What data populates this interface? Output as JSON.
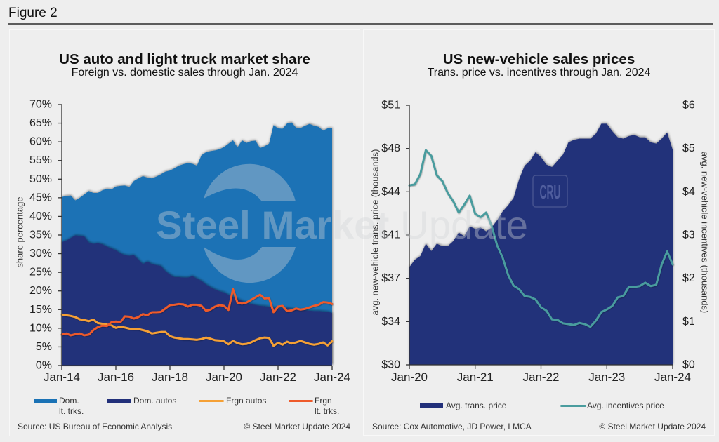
{
  "figure": {
    "label": "Figure 2"
  },
  "watermark": {
    "brand_bold": "Steel Market",
    "brand_light": "Update",
    "partner_logo": "CRU"
  },
  "chart_data": [
    {
      "type": "area",
      "title": "US auto and light truck market share",
      "subtitle": "Foreign vs. domestic sales through Jan. 2024",
      "xlabel": "",
      "ylabel": "share percentage",
      "x_start": "Jan-14",
      "x_end": "Jan-24",
      "x_interval_months": 2,
      "x_ticks": [
        "Jan-14",
        "Jan-16",
        "Jan-18",
        "Jan-20",
        "Jan-22",
        "Jan-24"
      ],
      "y_ticks": [
        "0%",
        "5%",
        "10%",
        "15%",
        "20%",
        "25%",
        "30%",
        "35%",
        "40%",
        "45%",
        "50%",
        "55%",
        "60%",
        "65%",
        "70%"
      ],
      "y_tick_values": [
        0,
        5,
        10,
        15,
        20,
        25,
        30,
        35,
        40,
        45,
        50,
        55,
        60,
        65,
        70
      ],
      "ylim": [
        0,
        70
      ],
      "grid": false,
      "legend_position": "bottom",
      "series": [
        {
          "name": "Dom. lt. trks.",
          "legend_label": "Dom.\nlt. trks.",
          "style": "area",
          "color": "#1a72b5",
          "values": [
            45.2,
            45.5,
            45.6,
            44.3,
            45.0,
            45.9,
            46.8,
            46.3,
            46.3,
            47.0,
            47.4,
            47.2,
            48.0,
            48.2,
            48.3,
            47.9,
            49.5,
            50.2,
            50.8,
            50.4,
            50.2,
            50.7,
            51.3,
            52.0,
            52.3,
            52.9,
            53.6,
            54.0,
            54.3,
            54.1,
            53.6,
            56.4,
            57.2,
            57.5,
            57.7,
            58.0,
            58.6,
            59.5,
            60.4,
            58.5,
            60.4,
            59.7,
            60.2,
            60.3,
            58.3,
            58.8,
            59.5,
            64.5,
            63.6,
            63.5,
            64.9,
            65.2,
            63.8,
            63.7,
            64.3,
            64.8,
            64.3,
            64.0,
            63.0,
            63.6,
            63.7
          ]
        },
        {
          "name": "Dom. autos",
          "legend_label": "Dom. autos",
          "style": "area",
          "color": "#22307a",
          "values": [
            33.1,
            33.5,
            34.2,
            34.9,
            34.8,
            34.6,
            33.0,
            32.6,
            32.8,
            32.5,
            31.9,
            31.4,
            30.9,
            30.1,
            29.6,
            29.4,
            29.6,
            28.4,
            27.2,
            27.9,
            27.2,
            26.9,
            26.7,
            25.3,
            24.4,
            23.7,
            23.7,
            23.6,
            23.6,
            24.0,
            23.3,
            22.7,
            21.7,
            21.0,
            20.4,
            19.9,
            19.6,
            18.9,
            18.3,
            17.8,
            17.3,
            16.8,
            16.5,
            16.2,
            16.0,
            15.9,
            15.7,
            15.5,
            15.3,
            15.3,
            15.4,
            15.2,
            15.0,
            14.9,
            14.8,
            14.7,
            14.6,
            14.6,
            14.5,
            14.4,
            14.1
          ]
        },
        {
          "name": "Frgn autos",
          "legend_label": "Frgn autos",
          "style": "line",
          "color": "#f5a035",
          "values": [
            13.7,
            13.5,
            13.3,
            13.0,
            12.4,
            12.2,
            11.9,
            12.3,
            11.4,
            11.2,
            11.0,
            10.8,
            10.1,
            10.4,
            10.2,
            9.9,
            9.8,
            9.8,
            9.5,
            9.2,
            8.6,
            8.8,
            9.0,
            9.0,
            7.9,
            7.5,
            7.3,
            7.1,
            7.1,
            7.0,
            6.9,
            7.1,
            7.5,
            7.2,
            6.8,
            6.7,
            6.5,
            5.7,
            6.6,
            6.0,
            5.7,
            5.8,
            6.2,
            6.8,
            7.3,
            7.5,
            7.4,
            5.3,
            6.1,
            5.6,
            6.4,
            5.9,
            6.2,
            6.6,
            6.2,
            5.8,
            5.6,
            5.8,
            6.2,
            5.4,
            6.5
          ]
        },
        {
          "name": "Frgn lt. trks.",
          "legend_label": "Frgn\nlt. trks.",
          "style": "line",
          "color": "#ee5a2a",
          "values": [
            8.3,
            8.6,
            8.1,
            8.4,
            8.6,
            8.1,
            8.3,
            9.5,
            10.3,
            10.7,
            10.6,
            11.6,
            11.8,
            11.6,
            13.2,
            13.1,
            12.6,
            13.0,
            13.8,
            13.5,
            14.3,
            14.3,
            14.4,
            15.3,
            16.2,
            16.3,
            16.5,
            16.4,
            15.8,
            16.3,
            16.3,
            16.0,
            14.7,
            15.0,
            15.8,
            16.2,
            16.0,
            14.9,
            20.5,
            16.8,
            16.6,
            16.9,
            17.6,
            18.3,
            19.0,
            18.0,
            18.1,
            14.3,
            15.8,
            16.0,
            14.6,
            14.8,
            15.3,
            15.0,
            15.2,
            15.6,
            16.0,
            16.3,
            17.0,
            16.9,
            16.5
          ]
        }
      ],
      "source": "Source: US Bureau of Economic Analysis",
      "copyright": "© Steel Market Update 2024"
    },
    {
      "type": "area+line",
      "title": "US new-vehicle sales prices",
      "subtitle": "Trans. price vs. incentives through Jan. 2024",
      "xlabel": "",
      "ylabel_left": "avg. new-vehicle trans. price (thousands)",
      "ylabel_right": "avg. new-vehicle incentives (thousands)",
      "x_start": "Jan-20",
      "x_end": "Jan-24",
      "x_interval_months": 1,
      "x_ticks": [
        "Jan-20",
        "Jan-21",
        "Jan-22",
        "Jan-23",
        "Jan-24"
      ],
      "y_left_ticks": [
        "$30",
        "$34",
        "$37",
        "$41",
        "$44",
        "$48",
        "$51"
      ],
      "y_left_tick_values": [
        30,
        33.5,
        37,
        40.5,
        44,
        47.5,
        51
      ],
      "y_left_lim": [
        30,
        51
      ],
      "y_right_ticks": [
        "$0",
        "$1",
        "$2",
        "$3",
        "$4",
        "$5",
        "$6"
      ],
      "y_right_tick_values": [
        0,
        1,
        2,
        3,
        4,
        5,
        6
      ],
      "y_right_lim": [
        0,
        6
      ],
      "grid": false,
      "legend_position": "bottom",
      "series": [
        {
          "name": "Avg. trans. price",
          "legend_label": "Avg. trans. price",
          "style": "area",
          "axis": "left",
          "color": "#22307a",
          "values": [
            37.9,
            38.5,
            38.8,
            39.8,
            39.2,
            39.8,
            39.6,
            39.6,
            40.0,
            40.7,
            40.4,
            41.2,
            41.0,
            41.1,
            40.8,
            41.1,
            41.7,
            42.4,
            42.9,
            43.5,
            45.0,
            46.1,
            46.5,
            47.2,
            46.8,
            46.2,
            46.0,
            46.5,
            47.0,
            48.0,
            48.2,
            48.3,
            48.3,
            48.3,
            48.7,
            49.5,
            49.5,
            48.9,
            48.4,
            48.3,
            48.5,
            48.6,
            48.4,
            48.4,
            48.0,
            47.9,
            48.3,
            48.8,
            47.4
          ]
        },
        {
          "name": "Avg. incentives price",
          "legend_label": "Avg. incentives price",
          "style": "line",
          "axis": "right",
          "color": "#4a9c9e",
          "values": [
            4.15,
            4.17,
            4.41,
            4.96,
            4.83,
            4.38,
            4.25,
            3.97,
            3.78,
            3.52,
            3.7,
            3.91,
            3.49,
            3.41,
            3.52,
            3.21,
            2.76,
            2.48,
            2.08,
            1.83,
            1.75,
            1.59,
            1.57,
            1.51,
            1.33,
            1.25,
            1.05,
            1.04,
            0.96,
            0.94,
            0.92,
            0.97,
            0.94,
            0.88,
            1.02,
            1.22,
            1.28,
            1.36,
            1.56,
            1.59,
            1.8,
            1.8,
            1.82,
            1.9,
            1.82,
            1.85,
            2.32,
            2.62,
            2.32
          ]
        }
      ],
      "source": "Source: Cox Automotive, JD Power, LMCA",
      "copyright": "© Steel Market Update 2024"
    }
  ]
}
